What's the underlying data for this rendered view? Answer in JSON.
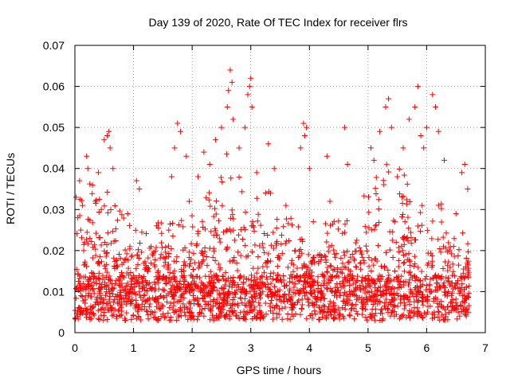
{
  "chart_data": {
    "type": "scatter",
    "title": "Day 139 of 2020, Rate Of TEC Index for receiver flrs",
    "xlabel": "GPS time / hours",
    "ylabel": "ROTI / TECUs",
    "xlim": [
      0,
      7
    ],
    "ylim": [
      0,
      0.07
    ],
    "x_ticks": [
      "0",
      "1",
      "2",
      "3",
      "4",
      "5",
      "6",
      "7"
    ],
    "y_ticks": [
      "0",
      "0.01",
      "0.02",
      "0.03",
      "0.04",
      "0.05",
      "0.06",
      "0.07"
    ],
    "grid": true,
    "marker": "+",
    "color": "#ff0000",
    "legend": "none",
    "series": [
      {
        "points": [
          [
            0.02,
            0.033
          ],
          [
            0.05,
            0.028
          ],
          [
            0.08,
            0.037
          ],
          [
            0.1,
            0.025
          ],
          [
            0.13,
            0.031
          ],
          [
            0.15,
            0.02
          ],
          [
            0.2,
            0.043
          ],
          [
            0.22,
            0.04
          ],
          [
            0.3,
            0.036
          ],
          [
            0.35,
            0.032
          ],
          [
            0.4,
            0.039
          ],
          [
            0.45,
            0.03
          ],
          [
            0.5,
            0.047
          ],
          [
            0.55,
            0.048
          ],
          [
            0.58,
            0.049
          ],
          [
            0.6,
            0.045
          ],
          [
            0.65,
            0.04
          ],
          [
            0.9,
            0.029
          ],
          [
            1.05,
            0.037
          ],
          [
            1.1,
            0.035
          ],
          [
            1.3,
            0.021
          ],
          [
            1.65,
            0.038
          ],
          [
            1.7,
            0.045
          ],
          [
            1.75,
            0.051
          ],
          [
            1.8,
            0.049
          ],
          [
            1.9,
            0.043
          ],
          [
            1.95,
            0.032
          ],
          [
            2.1,
            0.038
          ],
          [
            2.2,
            0.044
          ],
          [
            2.3,
            0.041
          ],
          [
            2.4,
            0.047
          ],
          [
            2.5,
            0.05
          ],
          [
            2.6,
            0.055
          ],
          [
            2.62,
            0.059
          ],
          [
            2.65,
            0.064
          ],
          [
            2.68,
            0.061
          ],
          [
            2.7,
            0.052
          ],
          [
            2.8,
            0.045
          ],
          [
            2.9,
            0.05
          ],
          [
            2.95,
            0.058
          ],
          [
            2.98,
            0.06
          ],
          [
            3.0,
            0.062
          ],
          [
            3.02,
            0.055
          ],
          [
            3.1,
            0.039
          ],
          [
            3.3,
            0.046
          ],
          [
            3.4,
            0.04
          ],
          [
            3.6,
            0.031
          ],
          [
            3.85,
            0.045
          ],
          [
            3.9,
            0.051
          ],
          [
            3.92,
            0.048
          ],
          [
            3.95,
            0.05
          ],
          [
            4.0,
            0.04
          ],
          [
            4.3,
            0.043
          ],
          [
            4.35,
            0.032
          ],
          [
            4.6,
            0.05
          ],
          [
            4.65,
            0.041
          ],
          [
            5.05,
            0.045
          ],
          [
            5.1,
            0.042
          ],
          [
            5.2,
            0.049
          ],
          [
            5.3,
            0.055
          ],
          [
            5.35,
            0.057
          ],
          [
            5.4,
            0.05
          ],
          [
            5.5,
            0.038
          ],
          [
            5.6,
            0.045
          ],
          [
            5.7,
            0.052
          ],
          [
            5.8,
            0.055
          ],
          [
            5.85,
            0.06
          ],
          [
            5.9,
            0.048
          ],
          [
            5.95,
            0.045
          ],
          [
            6.0,
            0.05
          ],
          [
            6.1,
            0.058
          ],
          [
            6.15,
            0.055
          ],
          [
            6.2,
            0.049
          ],
          [
            6.3,
            0.042
          ],
          [
            6.5,
            0.029
          ],
          [
            6.6,
            0.039
          ],
          [
            6.65,
            0.041
          ],
          [
            6.7,
            0.035
          ]
        ]
      }
    ]
  }
}
